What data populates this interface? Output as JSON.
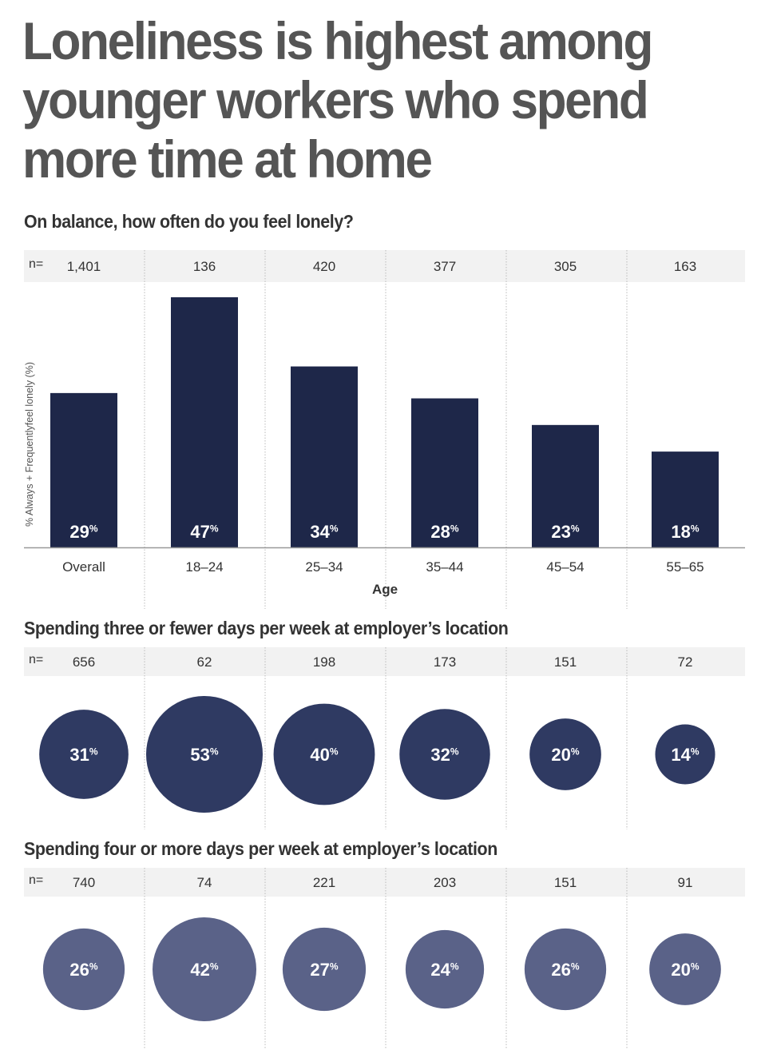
{
  "title": "Loneliness is highest among younger workers who spend more time at home",
  "chart_data": [
    {
      "type": "bar",
      "title": "On balance, how often do you feel lonely?",
      "categories": [
        "Overall",
        "18–24",
        "25–34",
        "35–44",
        "45–54",
        "55–65"
      ],
      "values": [
        29,
        47,
        34,
        28,
        23,
        18
      ],
      "value_labels": [
        "29",
        "47",
        "34",
        "28",
        "23",
        "18"
      ],
      "value_suffix": "%",
      "n_prefix": "n=",
      "n": [
        "1,401",
        "136",
        "420",
        "377",
        "305",
        "163"
      ],
      "xlabel": "Age",
      "ylabel": "% Always + Frequentlyfeel lonely (%)",
      "ylim": [
        0,
        50
      ],
      "grid": false
    },
    {
      "type": "bubble",
      "title": "Spending three or fewer days per week at employer’s location",
      "categories": [
        "Overall",
        "18–24",
        "25–34",
        "35–44",
        "45–54",
        "55–65"
      ],
      "values": [
        31,
        53,
        40,
        32,
        20,
        14
      ],
      "value_labels": [
        "31",
        "53",
        "40",
        "32",
        "20",
        "14"
      ],
      "value_suffix": "%",
      "n_prefix": "n=",
      "n": [
        "656",
        "62",
        "198",
        "173",
        "151",
        "72"
      ]
    },
    {
      "type": "bubble",
      "title": "Spending four or more days per week at employer’s location",
      "categories": [
        "Overall",
        "18–24",
        "25–34",
        "35–44",
        "45–54",
        "55–65"
      ],
      "values": [
        26,
        42,
        27,
        24,
        26,
        20
      ],
      "value_labels": [
        "26",
        "42",
        "27",
        "24",
        "26",
        "20"
      ],
      "value_suffix": "%",
      "n_prefix": "n=",
      "n": [
        "740",
        "74",
        "221",
        "203",
        "151",
        "91"
      ]
    }
  ],
  "colors": {
    "bar": "#1e2749",
    "bubble_three_or_fewer": "#2f3a62",
    "bubble_four_or_more": "#5a6288",
    "n_band": "#f2f2f2",
    "label_on_mark": "#ffffff",
    "text": "#333333",
    "title": "#555555",
    "divider": "#bbbbbb",
    "axis": "#999999"
  }
}
